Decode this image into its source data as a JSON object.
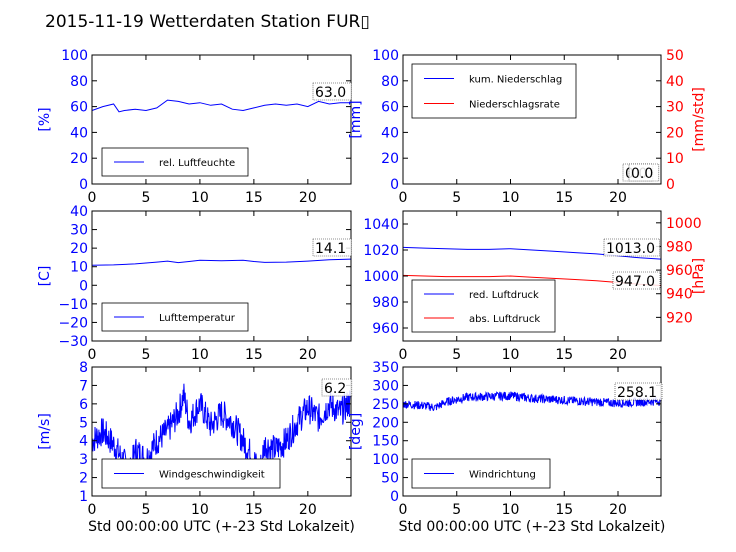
{
  "title": "2015-11-19 Wetterdaten Station FUR▯",
  "colors": {
    "primary": "#0000ff",
    "secondary": "#ff0000",
    "axis": "#000000"
  },
  "chart_data": [
    {
      "type": "line",
      "xlim": [
        0,
        24
      ],
      "xticks": [
        "0",
        "5",
        "10",
        "15",
        "20"
      ],
      "ylim": [
        0,
        100
      ],
      "yticks": [
        "0",
        "20",
        "40",
        "60",
        "80",
        "100"
      ],
      "ylabel": "[%]",
      "grid": false,
      "legend": {
        "placement": "lower-left",
        "entries": [
          "rel. Luftfeuchte"
        ]
      },
      "annotation": "63.0",
      "series": [
        {
          "name": "rel. Luftfeuchte",
          "color": "#0000ff",
          "x": [
            0,
            1,
            2,
            2.5,
            3,
            4,
            5,
            6,
            7,
            8,
            9,
            10,
            11,
            12,
            13,
            14,
            15,
            16,
            17,
            18,
            19,
            20,
            21,
            22,
            23,
            24
          ],
          "y": [
            57,
            60,
            62,
            56,
            57,
            58,
            57,
            59,
            65,
            64,
            62,
            63,
            61,
            62,
            58,
            57,
            59,
            61,
            62,
            61,
            62,
            60,
            64,
            62,
            63,
            63
          ]
        }
      ]
    },
    {
      "type": "line",
      "xlim": [
        0,
        24
      ],
      "xticks": [
        "0",
        "5",
        "10",
        "15",
        "20"
      ],
      "ylim": [
        0,
        100
      ],
      "yticks": [
        "0",
        "20",
        "40",
        "60",
        "80",
        "100"
      ],
      "ylabel": "[mm]",
      "y2lim": [
        0,
        50
      ],
      "y2ticks": [
        "0",
        "10",
        "20",
        "30",
        "40",
        "50"
      ],
      "y2label": "[mm/std]",
      "grid": false,
      "legend": {
        "placement": "upper-left",
        "entries": [
          "kum. Niederschlag",
          "Niederschlagsrate"
        ]
      },
      "annotation": "0.0",
      "annotation2": "0.0",
      "series": [
        {
          "name": "kum. Niederschlag",
          "color": "#0000ff",
          "axis": "left",
          "x": [
            0,
            24
          ],
          "y": [
            0,
            0
          ]
        },
        {
          "name": "Niederschlagsrate",
          "color": "#ff0000",
          "axis": "right",
          "x": [
            0,
            24
          ],
          "y": [
            0,
            0
          ]
        }
      ]
    },
    {
      "type": "line",
      "xlim": [
        0,
        24
      ],
      "xticks": [
        "0",
        "5",
        "10",
        "15",
        "20"
      ],
      "ylim": [
        -30,
        40
      ],
      "yticks": [
        "−30",
        "−20",
        "−10",
        "0",
        "10",
        "20",
        "30",
        "40"
      ],
      "ylabel": "[C]",
      "grid": false,
      "legend": {
        "placement": "lower-left",
        "entries": [
          "Lufttemperatur"
        ]
      },
      "annotation": "14.1",
      "series": [
        {
          "name": "Lufttemperatur",
          "color": "#0000ff",
          "x": [
            0,
            2,
            4,
            6,
            7,
            8,
            9,
            10,
            12,
            14,
            15,
            16,
            18,
            20,
            22,
            24
          ],
          "y": [
            10.8,
            11,
            11.5,
            12.5,
            13,
            12.2,
            12.8,
            13.5,
            13.2,
            13.5,
            12.8,
            12.3,
            12.5,
            13,
            13.8,
            14.1
          ]
        }
      ]
    },
    {
      "type": "line",
      "xlim": [
        0,
        24
      ],
      "xticks": [
        "0",
        "5",
        "10",
        "15",
        "20"
      ],
      "ylim": [
        950,
        1050
      ],
      "yticks": [
        "960",
        "980",
        "1000",
        "1020",
        "1040"
      ],
      "ylabel": "",
      "y2lim": [
        900,
        1010
      ],
      "y2ticks": [
        "920",
        "940",
        "960",
        "980",
        "1000"
      ],
      "y2label": "[hPa]",
      "grid": false,
      "legend": {
        "placement": "lower-left",
        "entries": [
          "red. Luftdruck",
          "abs. Luftdruck"
        ]
      },
      "annotation": "1013.0",
      "annotation2": "947.0",
      "series": [
        {
          "name": "red. Luftdruck",
          "color": "#0000ff",
          "axis": "left",
          "x": [
            0,
            2,
            4,
            6,
            8,
            10,
            12,
            14,
            16,
            18,
            20,
            22,
            24
          ],
          "y": [
            1022,
            1021.5,
            1021,
            1020.5,
            1020.5,
            1021,
            1020,
            1019,
            1018,
            1017,
            1015.5,
            1014,
            1013
          ]
        },
        {
          "name": "abs. Luftdruck",
          "color": "#ff0000",
          "axis": "right",
          "x": [
            0,
            2,
            4,
            6,
            8,
            10,
            12,
            14,
            16,
            18,
            20,
            22,
            24
          ],
          "y": [
            955.5,
            955,
            954.5,
            954.5,
            954.5,
            955,
            954,
            953,
            952,
            951,
            949.5,
            948,
            947
          ]
        }
      ]
    },
    {
      "type": "line",
      "xlim": [
        0,
        24
      ],
      "xticks": [
        "0",
        "5",
        "10",
        "15",
        "20"
      ],
      "ylim": [
        1,
        8
      ],
      "yticks": [
        "1",
        "2",
        "3",
        "4",
        "5",
        "6",
        "7",
        "8"
      ],
      "ylabel": "[m/s]",
      "xlabel": "Std 00:00:00 UTC (+-23 Std Lokalzeit)",
      "grid": false,
      "legend": {
        "placement": "lower-left",
        "entries": [
          "Windgeschwindigkeit"
        ]
      },
      "annotation": "6.2",
      "series": [
        {
          "name": "Windgeschwindigkeit",
          "color": "#0000ff",
          "x": [
            0,
            1,
            2,
            3,
            3.5,
            4,
            5,
            6,
            7,
            8,
            8.5,
            9,
            10,
            11,
            12,
            13,
            14,
            15,
            15.5,
            16,
            17,
            18,
            19,
            20,
            21,
            22,
            23,
            24
          ],
          "y": [
            4,
            4.5,
            3.8,
            2.8,
            2.2,
            3.5,
            3,
            4,
            4.5,
            5.5,
            6.5,
            5,
            6,
            4.8,
            5.5,
            5,
            4,
            3,
            2.2,
            3.8,
            3.5,
            4,
            5,
            5.8,
            5.2,
            6,
            5.5,
            6.2
          ],
          "noise": 0.8
        }
      ]
    },
    {
      "type": "line",
      "xlim": [
        0,
        24
      ],
      "xticks": [
        "0",
        "5",
        "10",
        "15",
        "20"
      ],
      "ylim": [
        0,
        350
      ],
      "yticks": [
        "0",
        "50",
        "100",
        "150",
        "200",
        "250",
        "300",
        "350"
      ],
      "ylabel": "[deg]",
      "xlabel": "Std 00:00:00 UTC (+-23 Std Lokalzeit)",
      "grid": false,
      "legend": {
        "placement": "lower-left",
        "entries": [
          "Windrichtung"
        ]
      },
      "annotation": "258.1",
      "series": [
        {
          "name": "Windrichtung",
          "color": "#0000ff",
          "x": [
            0,
            2,
            3,
            4,
            5,
            6,
            8,
            10,
            12,
            14,
            16,
            18,
            20,
            22,
            24
          ],
          "y": [
            250,
            245,
            240,
            255,
            262,
            268,
            270,
            272,
            265,
            262,
            258,
            255,
            252,
            255,
            258
          ],
          "noise": 12
        }
      ]
    }
  ]
}
